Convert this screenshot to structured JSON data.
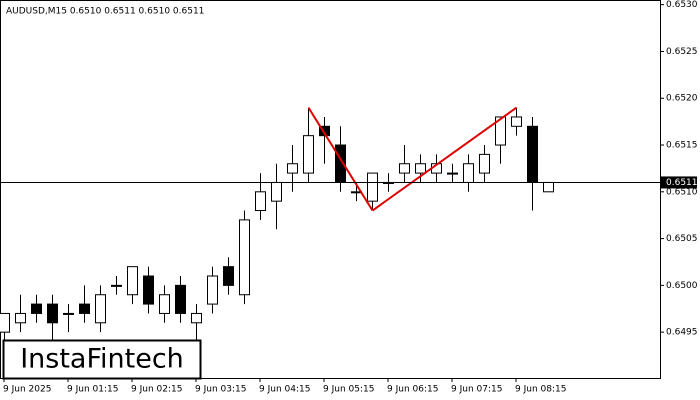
{
  "chart_data": {
    "type": "candlestick",
    "title": "AUDUSD,M15  0.6510 0.6511 0.6510 0.6511",
    "categories": [
      "9 Jun 2025",
      null,
      null,
      null,
      "9 Jun 01:15",
      null,
      null,
      null,
      "9 Jun 02:15",
      null,
      null,
      null,
      "9 Jun 03:15",
      null,
      null,
      null,
      "9 Jun 04:15",
      null,
      null,
      null,
      "9 Jun 05:15",
      null,
      null,
      null,
      "9 Jun 06:15",
      null,
      null,
      null,
      "9 Jun 07:15",
      null,
      null,
      null,
      "9 Jun 08:15",
      null,
      null
    ],
    "open": [
      0.6495,
      0.6496,
      0.6498,
      0.6498,
      0.6497,
      0.6498,
      0.6496,
      0.65,
      0.6499,
      0.6501,
      0.6497,
      0.65,
      0.6496,
      0.6498,
      0.6502,
      0.6499,
      0.6508,
      0.6509,
      0.6512,
      0.6512,
      0.6517,
      0.6515,
      0.651,
      0.6509,
      0.6511,
      0.6512,
      0.6512,
      0.6512,
      0.6512,
      0.6511,
      0.6512,
      0.6515,
      0.6517,
      0.6517,
      0.651
    ],
    "high": [
      0.6497,
      0.6499,
      0.6499,
      0.6499,
      0.6498,
      0.65,
      0.65,
      0.6501,
      0.6502,
      0.6502,
      0.65,
      0.6501,
      0.6498,
      0.6502,
      0.6503,
      0.6508,
      0.6512,
      0.6513,
      0.6515,
      0.6519,
      0.6518,
      0.6517,
      0.6511,
      0.6512,
      0.6512,
      0.6515,
      0.6514,
      0.6514,
      0.6513,
      0.6514,
      0.6515,
      0.6518,
      0.6519,
      0.6518,
      0.6511
    ],
    "low": [
      0.6494,
      0.6495,
      0.6496,
      0.6494,
      0.6495,
      0.6496,
      0.6495,
      0.6499,
      0.6498,
      0.6497,
      0.6496,
      0.6496,
      0.6494,
      0.6497,
      0.6499,
      0.6498,
      0.6507,
      0.6506,
      0.651,
      0.6511,
      0.6513,
      0.651,
      0.6509,
      0.6508,
      0.651,
      0.6511,
      0.6511,
      0.6511,
      0.6511,
      0.651,
      0.6511,
      0.6513,
      0.6516,
      0.6508,
      0.651
    ],
    "close": [
      0.6497,
      0.6497,
      0.6497,
      0.6496,
      0.6497,
      0.6497,
      0.6499,
      0.65,
      0.6502,
      0.6498,
      0.6499,
      0.6497,
      0.6497,
      0.6501,
      0.65,
      0.6507,
      0.651,
      0.6511,
      0.6513,
      0.6516,
      0.6516,
      0.6511,
      0.651,
      0.6512,
      0.6511,
      0.6513,
      0.6513,
      0.6513,
      0.6512,
      0.6513,
      0.6514,
      0.6518,
      0.6518,
      0.6511,
      0.6511
    ],
    "up_color": "#ffffff",
    "down_color": "#000000",
    "pattern_color": "#e00000",
    "pattern": [
      null,
      null,
      null,
      null,
      null,
      null,
      null,
      null,
      null,
      null,
      null,
      null,
      null,
      null,
      null,
      null,
      null,
      null,
      null,
      0.6519,
      null,
      null,
      null,
      0.6508,
      null,
      null,
      null,
      null,
      null,
      null,
      null,
      null,
      0.6519,
      null,
      null
    ],
    "current_price": 0.6511,
    "ylim": [
      0.64901,
      0.65305
    ],
    "yticks": [
      {
        "value": 0.653,
        "label": "0.6530"
      },
      {
        "value": 0.6525,
        "label": "0.6525"
      },
      {
        "value": 0.652,
        "label": "0.6520"
      },
      {
        "value": 0.6515,
        "label": "0.6515"
      },
      {
        "value": 0.651,
        "label": "0.6510"
      },
      {
        "value": 0.6505,
        "label": "0.6505"
      },
      {
        "value": 0.65,
        "label": "0.6500"
      },
      {
        "value": 0.6495,
        "label": "0.6495"
      }
    ],
    "logo": "InstaFintech"
  }
}
